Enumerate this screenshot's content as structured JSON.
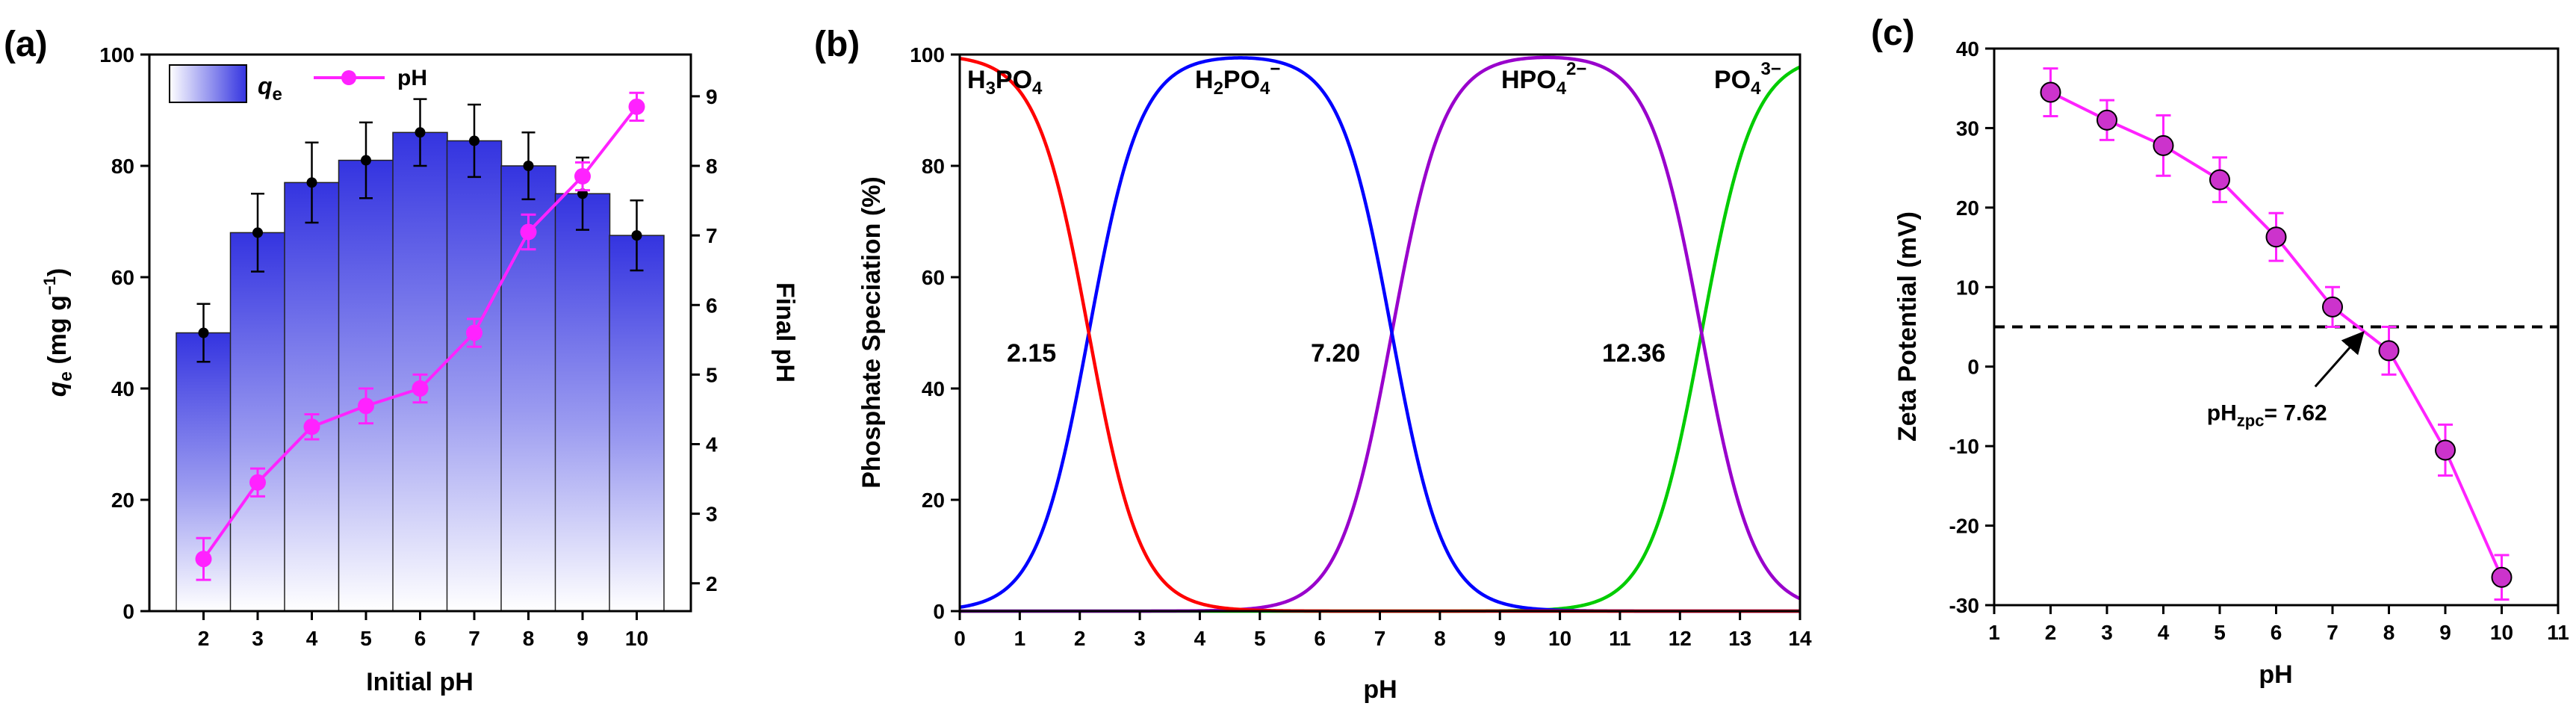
{
  "chart_data": [
    {
      "panel": "(a)",
      "type": "bar",
      "xlabel": "Initial pH",
      "ylabel_main": "q",
      "ylabel_sub": "e",
      "ylabel_unit_pre": " (mg g",
      "ylabel_unit_sup": "−1",
      "ylabel_unit_post": ")",
      "y2label": "Final pH",
      "categories": [
        "2",
        "3",
        "4",
        "5",
        "6",
        "7",
        "8",
        "9",
        "10"
      ],
      "x": [
        2,
        3,
        4,
        5,
        6,
        7,
        8,
        9,
        10
      ],
      "xlim": [
        1,
        11
      ],
      "ylim": [
        0,
        100
      ],
      "yticks": [
        0,
        20,
        40,
        60,
        80,
        100
      ],
      "y2lim": [
        1.6,
        9.6
      ],
      "y2ticks": [
        2,
        3,
        4,
        5,
        6,
        7,
        8,
        9
      ],
      "series": [
        {
          "name_main": "q",
          "name_sub": "e",
          "type": "bar",
          "values": [
            50.0,
            68.0,
            77.0,
            81.0,
            86.0,
            84.5,
            80.0,
            75.0,
            67.5
          ],
          "errors": [
            5.2,
            7.0,
            7.2,
            6.8,
            6.0,
            6.5,
            6.0,
            6.5,
            6.3
          ],
          "color": "#3a3ae6"
        },
        {
          "name": "pH",
          "type": "line",
          "axis": "right",
          "values": [
            2.35,
            3.45,
            4.25,
            4.55,
            4.8,
            5.6,
            7.05,
            7.85,
            8.85
          ],
          "errors": [
            0.3,
            0.2,
            0.18,
            0.25,
            0.2,
            0.2,
            0.25,
            0.2,
            0.2
          ],
          "color": "#ff22ff"
        }
      ],
      "legend": "top"
    },
    {
      "panel": "(b)",
      "type": "line",
      "xlabel": "pH",
      "ylabel": "Phosphate Speciation (%)",
      "xlim": [
        0,
        14
      ],
      "xticks": [
        0,
        1,
        2,
        3,
        4,
        5,
        6,
        7,
        8,
        9,
        10,
        11,
        12,
        13,
        14
      ],
      "ylim": [
        0,
        100
      ],
      "yticks": [
        0,
        20,
        40,
        60,
        80,
        100
      ],
      "pKa": [
        2.15,
        7.2,
        12.36
      ],
      "pKa_labels": [
        "2.15",
        "7.20",
        "12.36"
      ],
      "species": [
        {
          "base": "H",
          "sub1": "3",
          "mid": "PO",
          "sub2": "4",
          "sup": "",
          "color": "#ff0000"
        },
        {
          "base": "H",
          "sub1": "2",
          "mid": "PO",
          "sub2": "4",
          "sup": "−",
          "color": "#0000ff"
        },
        {
          "base": "",
          "sub1": "",
          "mid": "HPO",
          "sub2": "4",
          "sup": "2−",
          "color": "#9900cc"
        },
        {
          "base": "",
          "sub1": "",
          "mid": "PO",
          "sub2": "4",
          "sup": "3−",
          "color": "#00cc00"
        }
      ]
    },
    {
      "panel": "(c)",
      "type": "line",
      "xlabel": "pH",
      "ylabel": "Zeta Potential (mV)",
      "xlim": [
        1,
        11
      ],
      "xticks": [
        1,
        2,
        3,
        4,
        5,
        6,
        7,
        8,
        9,
        10,
        11
      ],
      "ylim": [
        -30,
        40
      ],
      "yticks": [
        -30,
        -20,
        -10,
        0,
        10,
        20,
        30,
        40
      ],
      "x": [
        2,
        3,
        4,
        5,
        6,
        7,
        8,
        9,
        10
      ],
      "values": [
        34.5,
        31.0,
        27.8,
        23.5,
        16.3,
        7.5,
        2.0,
        -10.5,
        -26.5
      ],
      "errors": [
        3.0,
        2.5,
        3.8,
        2.8,
        3.0,
        2.5,
        3.0,
        3.2,
        2.8
      ],
      "color": "#ff22ff",
      "marker_fill": "#cc33cc",
      "reference_line_y": 5,
      "annotation_main": "pH",
      "annotation_sub": "zpc",
      "annotation_value": "= 7.62",
      "annotation_point": [
        7.62,
        5
      ]
    }
  ]
}
